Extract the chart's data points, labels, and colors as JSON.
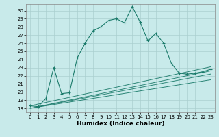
{
  "xlabel": "Humidex (Indice chaleur)",
  "bg_color": "#c8eaea",
  "grid_color": "#aacfcf",
  "line_color": "#1a7a6a",
  "xlim": [
    -0.5,
    23.5
  ],
  "ylim": [
    17.5,
    30.8
  ],
  "xticks": [
    0,
    1,
    2,
    3,
    4,
    5,
    6,
    7,
    8,
    9,
    10,
    11,
    12,
    13,
    14,
    15,
    16,
    17,
    18,
    19,
    20,
    21,
    22,
    23
  ],
  "yticks": [
    18,
    19,
    20,
    21,
    22,
    23,
    24,
    25,
    26,
    27,
    28,
    29,
    30
  ],
  "main_x": [
    0,
    1,
    2,
    3,
    4,
    5,
    6,
    7,
    8,
    9,
    10,
    11,
    12,
    13,
    14,
    15,
    16,
    17,
    18,
    19,
    20,
    21,
    22,
    23
  ],
  "main_y": [
    18.3,
    18.2,
    19.2,
    23.0,
    19.8,
    19.9,
    24.2,
    26.0,
    27.5,
    28.0,
    28.8,
    29.0,
    28.5,
    30.5,
    28.6,
    26.3,
    27.2,
    26.0,
    23.5,
    22.3,
    22.2,
    22.3,
    22.5,
    22.8
  ],
  "ref_lines": [
    {
      "x_start": 0,
      "x_end": 23,
      "y_start": 18.3,
      "y_end": 23.1
    },
    {
      "x_start": 1,
      "x_end": 23,
      "y_start": 18.2,
      "y_end": 22.6
    },
    {
      "x_start": 0,
      "x_end": 23,
      "y_start": 18.0,
      "y_end": 22.2
    },
    {
      "x_start": 0,
      "x_end": 23,
      "y_start": 18.0,
      "y_end": 21.5
    }
  ]
}
